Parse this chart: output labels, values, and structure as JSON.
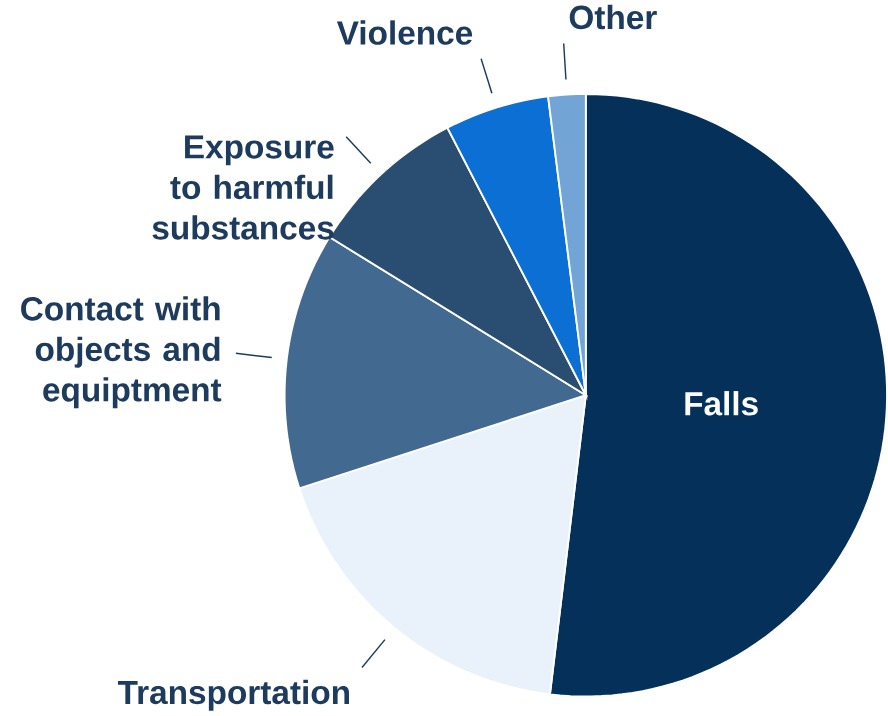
{
  "chart_data": {
    "type": "pie",
    "categories": [
      "Falls",
      "Transportation",
      "Contact with objects and equiptment",
      "Exposure to harmful substances",
      "Violence",
      "Other"
    ],
    "values": [
      51.9,
      18.1,
      13.8,
      8.6,
      5.6,
      2.0
    ],
    "colors": [
      "#04305a",
      "#e9f2fb",
      "#42698f",
      "#2a4d72",
      "#0b6fd3",
      "#72a4d6"
    ]
  }
}
